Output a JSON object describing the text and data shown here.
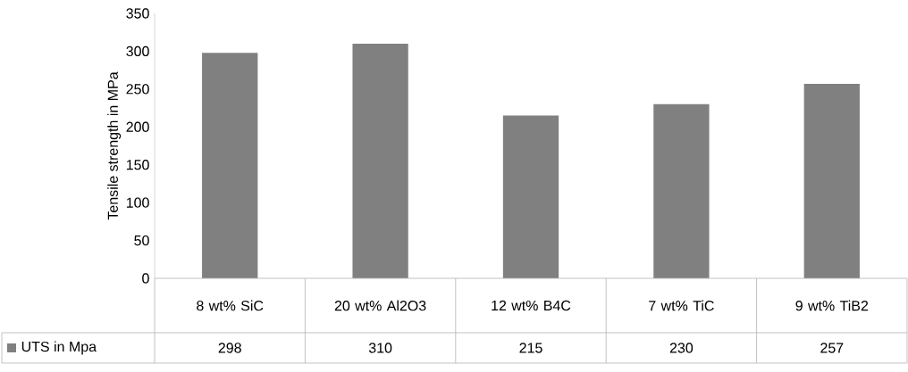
{
  "chart_data": {
    "type": "bar",
    "ylabel": "Tensile strength in MPa",
    "categories": [
      "8 wt% SiC",
      "20 wt% Al2O3",
      "12 wt% B4C",
      "7 wt% TiC",
      "9 wt% TiB2"
    ],
    "series": [
      {
        "name": "UTS in Mpa",
        "color": "#808080",
        "values": [
          298,
          310,
          215,
          230,
          257
        ]
      }
    ],
    "ylim": [
      0,
      350
    ],
    "yticks": [
      0,
      50,
      100,
      150,
      200,
      250,
      300,
      350
    ],
    "data_labels": true,
    "legend": "bottom left",
    "grid": false
  }
}
